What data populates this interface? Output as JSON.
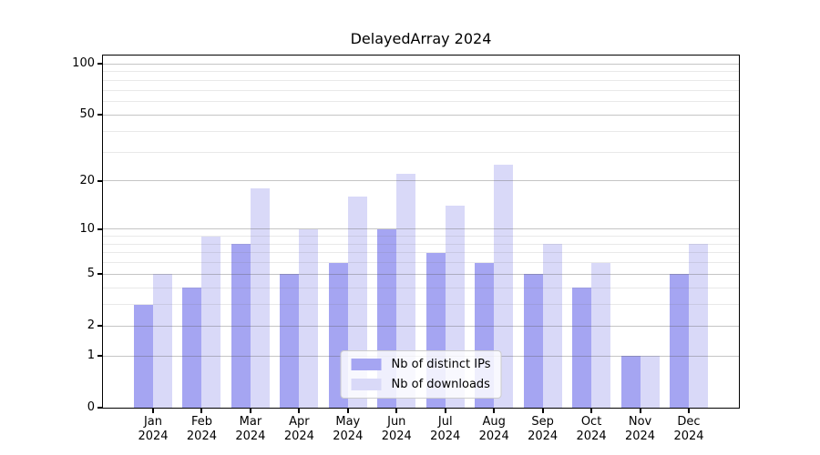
{
  "chart_data": {
    "type": "bar",
    "title": "DelayedArray 2024",
    "categories": [
      "Jan\n2024",
      "Feb\n2024",
      "Mar\n2024",
      "Apr\n2024",
      "May\n2024",
      "Jun\n2024",
      "Jul\n2024",
      "Aug\n2024",
      "Sep\n2024",
      "Oct\n2024",
      "Nov\n2024",
      "Dec\n2024"
    ],
    "series": [
      {
        "name": "Nb of distinct IPs",
        "slug": "distinct-ips",
        "color": "#a5a5f2",
        "values": [
          3,
          4,
          8,
          5,
          6,
          10,
          7,
          6,
          5,
          4,
          1,
          5
        ]
      },
      {
        "name": "Nb of downloads",
        "slug": "downloads",
        "color": "#d9d9f8",
        "values": [
          5,
          9,
          18,
          10,
          16,
          22,
          14,
          25,
          8,
          6,
          1,
          8
        ]
      }
    ],
    "xlabel": "",
    "ylabel": "",
    "yscale": "log1p",
    "ylim": [
      0,
      110
    ],
    "y_tick_labels": [
      0,
      1,
      2,
      5,
      10,
      20,
      50,
      100
    ],
    "y_minor_gridlines": [
      3,
      4,
      6,
      7,
      8,
      9,
      30,
      40,
      60,
      70,
      80,
      90
    ],
    "grid": "horizontal",
    "legend_position": "lower center",
    "axis_color": "#000000",
    "background_color": "#ffffff"
  }
}
